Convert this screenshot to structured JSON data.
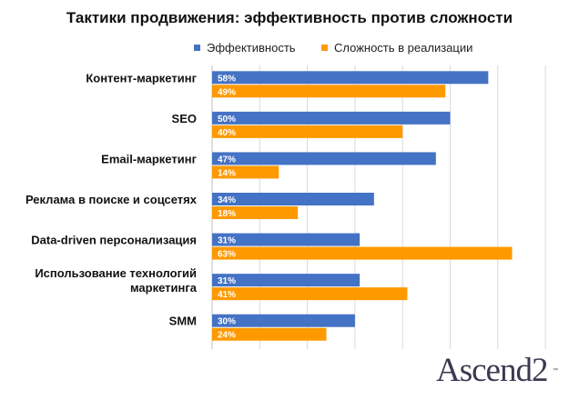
{
  "chart_data": {
    "type": "bar",
    "orientation": "horizontal",
    "title": "Тактики продвижения: эффективность против сложности",
    "categories": [
      "Контент-маркетинг",
      "SEO",
      "Email-маркетинг",
      "Реклама в поиске и соцсетях",
      "Data-driven персонализация",
      "Использование технологий маркетинга",
      "SMM"
    ],
    "category_lines": [
      [
        "Контент-маркетинг"
      ],
      [
        "SEO"
      ],
      [
        "Email-маркетинг"
      ],
      [
        "Реклама в поиске и соцсетях"
      ],
      [
        "Data-driven персонализация"
      ],
      [
        "Использование технологий",
        "маркетинга"
      ],
      [
        "SMM"
      ]
    ],
    "series": [
      {
        "name": "Эффективность",
        "color": "#4472c4",
        "values": [
          58,
          50,
          47,
          34,
          31,
          31,
          30
        ]
      },
      {
        "name": "Сложность в реализации",
        "color": "#ff9900",
        "values": [
          49,
          40,
          14,
          18,
          63,
          41,
          24
        ]
      }
    ],
    "value_suffix": "%",
    "xlim": [
      0,
      70
    ],
    "grid": "vertical",
    "legend": "top"
  },
  "logo": {
    "text": "Ascend2",
    "mark": "™"
  }
}
